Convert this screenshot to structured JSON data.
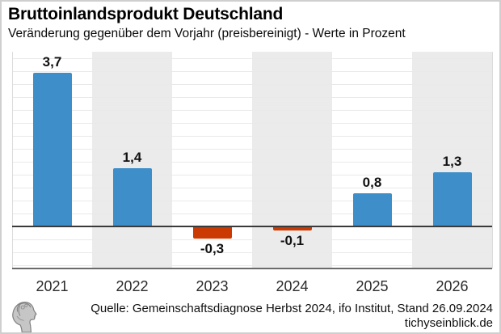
{
  "title": "Bruttoinlandsprodukt Deutschland",
  "subtitle": "Veränderung gegenüber dem Vorjahr (preisbereinigt) - Werte in Prozent",
  "footer": {
    "source": "Quelle: Gemeinschaftsdiagnose Herbst 2024, ifo Institut, Stand 26.09.2024",
    "site": "tichyseinblick.de"
  },
  "logo": {
    "name": "tichys-einblick-head-logo"
  },
  "colors": {
    "bar_positive": "#3d8ec9",
    "bar_negative": "#cc3a04",
    "column_band": "#ebebeb",
    "gridline": "#e9e9e9",
    "zero_line": "#3a3a3a",
    "axis_line": "#6b6b6b",
    "outer_border": "#cfcfcf"
  },
  "chart_data": {
    "type": "bar",
    "categories": [
      "2021",
      "2022",
      "2023",
      "2024",
      "2025",
      "2026"
    ],
    "values": [
      3.7,
      1.4,
      -0.3,
      -0.1,
      0.8,
      1.3
    ],
    "value_labels": [
      "3,7",
      "1,4",
      "-0,3",
      "-0,1",
      "0,8",
      "1,3"
    ],
    "title": "Bruttoinlandsprodukt Deutschland",
    "xlabel": "",
    "ylabel": "",
    "ylim": [
      -1.0,
      4.2
    ],
    "grid": "horizontal-faint",
    "legend": "none",
    "banded_category_indices": [
      1,
      3,
      5
    ],
    "positive_color": "#3d8ec9",
    "negative_color": "#cc3a04"
  }
}
